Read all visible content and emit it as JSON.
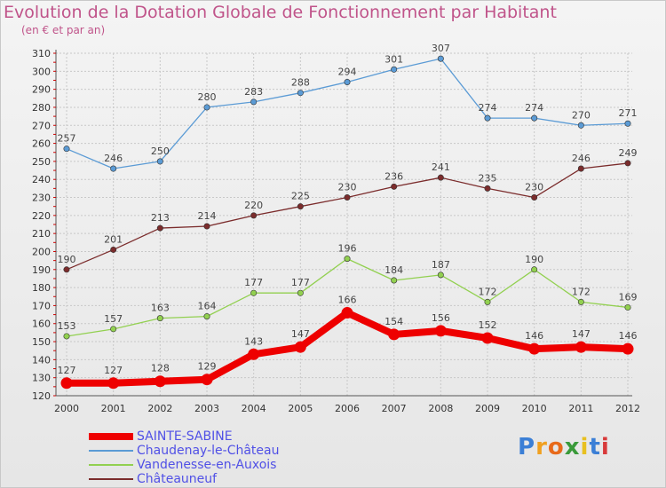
{
  "title": "Evolution de la Dotation Globale de Fonctionnement par Habitant",
  "subtitle": "(en € et par an)",
  "logo_text": "Proxiti",
  "colors": {
    "title": "#c0548a",
    "legend_text": "#5050e6",
    "grid": "#c8c8c8",
    "axis_tick": "#cc0000"
  },
  "chart_data": {
    "type": "line",
    "title": "Evolution de la Dotation Globale de Fonctionnement par Habitant",
    "subtitle": "(en € et par an)",
    "xlabel": "",
    "ylabel": "",
    "x": [
      "2000",
      "2001",
      "2002",
      "2003",
      "2004",
      "2005",
      "2006",
      "2007",
      "2008",
      "2009",
      "2010",
      "2011",
      "2012"
    ],
    "ylim": [
      120,
      310
    ],
    "yticks": [
      120,
      130,
      140,
      150,
      160,
      170,
      180,
      190,
      200,
      210,
      220,
      230,
      240,
      250,
      260,
      270,
      280,
      290,
      300,
      310
    ],
    "grid": true,
    "legend_position": "bottom-left",
    "series": [
      {
        "name": "SAINTE-SABINE",
        "color": "#ee0000",
        "values": [
          127,
          127,
          128,
          129,
          143,
          147,
          166,
          154,
          156,
          152,
          146,
          147,
          146
        ]
      },
      {
        "name": "Chaudenay-le-Château",
        "color": "#5b9bd5",
        "values": [
          257,
          246,
          250,
          280,
          283,
          288,
          294,
          301,
          307,
          274,
          274,
          270,
          271
        ]
      },
      {
        "name": "Vandenesse-en-Auxois",
        "color": "#92d050",
        "values": [
          153,
          157,
          163,
          164,
          177,
          177,
          196,
          184,
          187,
          172,
          190,
          172,
          169
        ]
      },
      {
        "name": "Châteauneuf",
        "color": "#7b2c2c",
        "values": [
          190,
          201,
          213,
          214,
          220,
          225,
          230,
          236,
          241,
          235,
          230,
          246,
          249
        ]
      }
    ]
  }
}
